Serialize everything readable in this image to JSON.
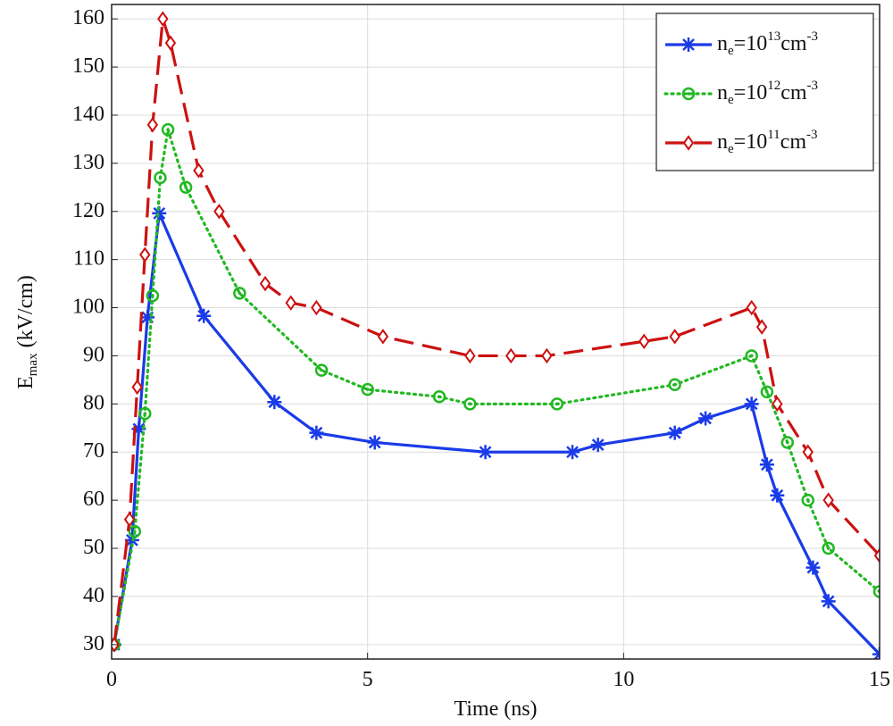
{
  "chart_data": {
    "type": "line",
    "xlabel": "Time (ns)",
    "ylabel": "E_{max} (kV/cm)",
    "xlim": [
      0,
      15
    ],
    "ylim": [
      27,
      163
    ],
    "xticks": [
      0,
      5,
      10,
      15
    ],
    "yticks": [
      30,
      40,
      50,
      60,
      70,
      80,
      90,
      100,
      110,
      120,
      130,
      140,
      150,
      160
    ],
    "grid": true,
    "legend": "upper right",
    "series": [
      {
        "name": "n_{e}=10^{13}cm^{-3}",
        "color": "#1a3be8",
        "linestyle": "solid",
        "marker": "asterisk",
        "x": [
          0.05,
          0.4,
          0.53,
          0.7,
          0.93,
          1.8,
          3.18,
          4,
          5.14,
          7.3,
          9,
          9.5,
          11,
          11.6,
          12.5,
          12.8,
          13,
          13.7,
          14,
          15
        ],
        "values": [
          30,
          51.7,
          74.8,
          98,
          119.6,
          98.3,
          80.4,
          74,
          72,
          70,
          70,
          71.5,
          74,
          77,
          80,
          67.4,
          61,
          46,
          39,
          28
        ]
      },
      {
        "name": "n_{e}=10^{12}cm^{-3}",
        "color": "#22b822",
        "linestyle": "dotted",
        "marker": "circle",
        "x": [
          0.05,
          0.45,
          0.65,
          0.8,
          0.95,
          1.1,
          1.45,
          2.5,
          4.1,
          5,
          6.4,
          7,
          8.7,
          11,
          12.5,
          12.8,
          13.2,
          13.6,
          14,
          15
        ],
        "values": [
          30,
          53.5,
          78,
          102.5,
          127,
          137,
          125,
          103,
          87,
          83,
          81.5,
          80,
          80,
          84,
          90,
          82.5,
          72,
          60,
          50,
          41
        ]
      },
      {
        "name": "n_{e}=10^{11}cm^{-3}",
        "color": "#cc1111",
        "linestyle": "dashed",
        "marker": "diamond",
        "x": [
          0.05,
          0.35,
          0.5,
          0.65,
          0.8,
          1,
          1.15,
          1.7,
          2.1,
          3,
          3.5,
          4,
          5.3,
          7,
          7.8,
          8.5,
          10.4,
          11,
          12.5,
          12.7,
          13,
          13.6,
          14,
          15
        ],
        "values": [
          30,
          56,
          83.5,
          111,
          138,
          160,
          155,
          128.5,
          120,
          105,
          101,
          100,
          94,
          90,
          90,
          90,
          93,
          94,
          100,
          96,
          80,
          70,
          60,
          48.5
        ]
      }
    ]
  }
}
